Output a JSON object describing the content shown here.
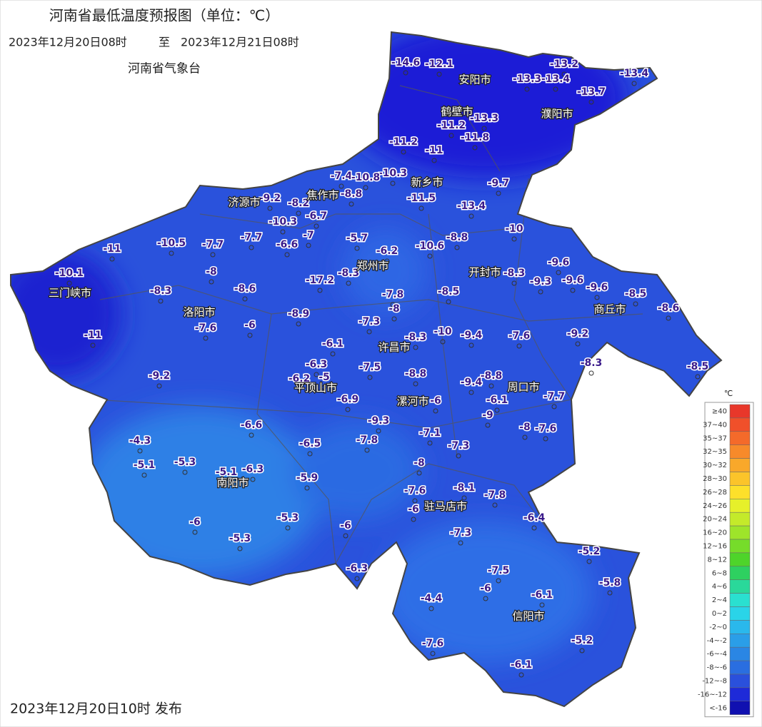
{
  "header": {
    "title": "河南省最低温度预报图（单位：℃）",
    "period_from": "2023年12月20日08时",
    "period_sep": "至",
    "period_to": "2023年12月21日08时",
    "agency": "河南省气象台"
  },
  "footer": {
    "published": "2023年12月20日10时 发布"
  },
  "map": {
    "fill": "#2a52dc",
    "cities": [
      "安阳市",
      "鹤壁市",
      "濮阳市",
      "新乡市",
      "焦作市",
      "济源市",
      "郑州市",
      "开封市",
      "三门峡市",
      "洛阳市",
      "商丘市",
      "许昌市",
      "平顶山市",
      "周口市",
      "漯河市",
      "南阳市",
      "驻马店市",
      "信阳市"
    ],
    "stations": [
      -14.6,
      -12.1,
      -13.2,
      -13.4,
      -13.3,
      -13.4,
      -13.7,
      -13.3,
      -11.2,
      -11.8,
      -11.2,
      -11,
      -10.3,
      -7.4,
      -10.8,
      -9.7,
      -11.5,
      -13.4,
      -9.2,
      -8.8,
      -8.2,
      -6.7,
      -10.3,
      -7,
      -5.7,
      -8.8,
      -10,
      -10.5,
      -7.7,
      -7.7,
      -6.6,
      -6.2,
      -10.6,
      -11,
      -9.6,
      -10.1,
      -8,
      -8.3,
      -8.3,
      -9.3,
      -9.6,
      -9.6,
      -8.5,
      -8.3,
      -8.6,
      -8.5,
      -7.8,
      -8,
      -8.6,
      -8.9,
      -7.3,
      -7.6,
      -6,
      -10,
      -9.4,
      -7.6,
      -9.2,
      -8.3,
      -11,
      -6.1,
      -8.3,
      -8.5,
      -7.5,
      -6.3,
      -8.8,
      -9.2,
      -6.2,
      -5,
      -9.4,
      -8.8,
      -6.9,
      -6.1,
      -7.7,
      -6,
      -9,
      -9.3,
      -6.6,
      -8,
      -7.6,
      -7.1,
      -7.8,
      -6.5,
      -7.3,
      -4.3,
      -5.1,
      -5.3,
      -8,
      -5.1,
      -6.3,
      -5.9,
      -7.6,
      -8.1,
      -7.8,
      -6,
      -6.4,
      -6,
      -5.3,
      -6,
      -7.3,
      -5.3,
      -5.2,
      -6.3,
      -7.5,
      -5.8,
      -6,
      -6.1,
      -4.4,
      -5.2,
      -7.6,
      -6.1,
      -17.2
    ]
  },
  "legend": {
    "unit": "℃",
    "items": [
      {
        "label": "≥40",
        "color": "#e8372a"
      },
      {
        "label": "37~40",
        "color": "#f0502a"
      },
      {
        "label": "35~37",
        "color": "#f46a2a"
      },
      {
        "label": "32~35",
        "color": "#f78a2a"
      },
      {
        "label": "30~32",
        "color": "#f9a82a"
      },
      {
        "label": "28~30",
        "color": "#fbc42a"
      },
      {
        "label": "26~28",
        "color": "#fde02a"
      },
      {
        "label": "24~26",
        "color": "#e6f02a"
      },
      {
        "label": "20~24",
        "color": "#c4ea2a"
      },
      {
        "label": "16~20",
        "color": "#9ee42a"
      },
      {
        "label": "12~16",
        "color": "#76dc2a"
      },
      {
        "label": "8~12",
        "color": "#4ed42a"
      },
      {
        "label": "6~8",
        "color": "#2ed060"
      },
      {
        "label": "4~6",
        "color": "#2ad89a"
      },
      {
        "label": "2~4",
        "color": "#2ae0d0"
      },
      {
        "label": "0~2",
        "color": "#2ad4e8"
      },
      {
        "label": "-2~0",
        "color": "#2ab8ec"
      },
      {
        "label": "-4~-2",
        "color": "#2a9ee8"
      },
      {
        "label": "-6~-4",
        "color": "#2a86e4"
      },
      {
        "label": "-8~-6",
        "color": "#2a6ee0"
      },
      {
        "label": "-12~-8",
        "color": "#2a50dc"
      },
      {
        "label": "-16~-12",
        "color": "#1e2ad8"
      },
      {
        "label": "<-16",
        "color": "#1010b0"
      }
    ]
  }
}
